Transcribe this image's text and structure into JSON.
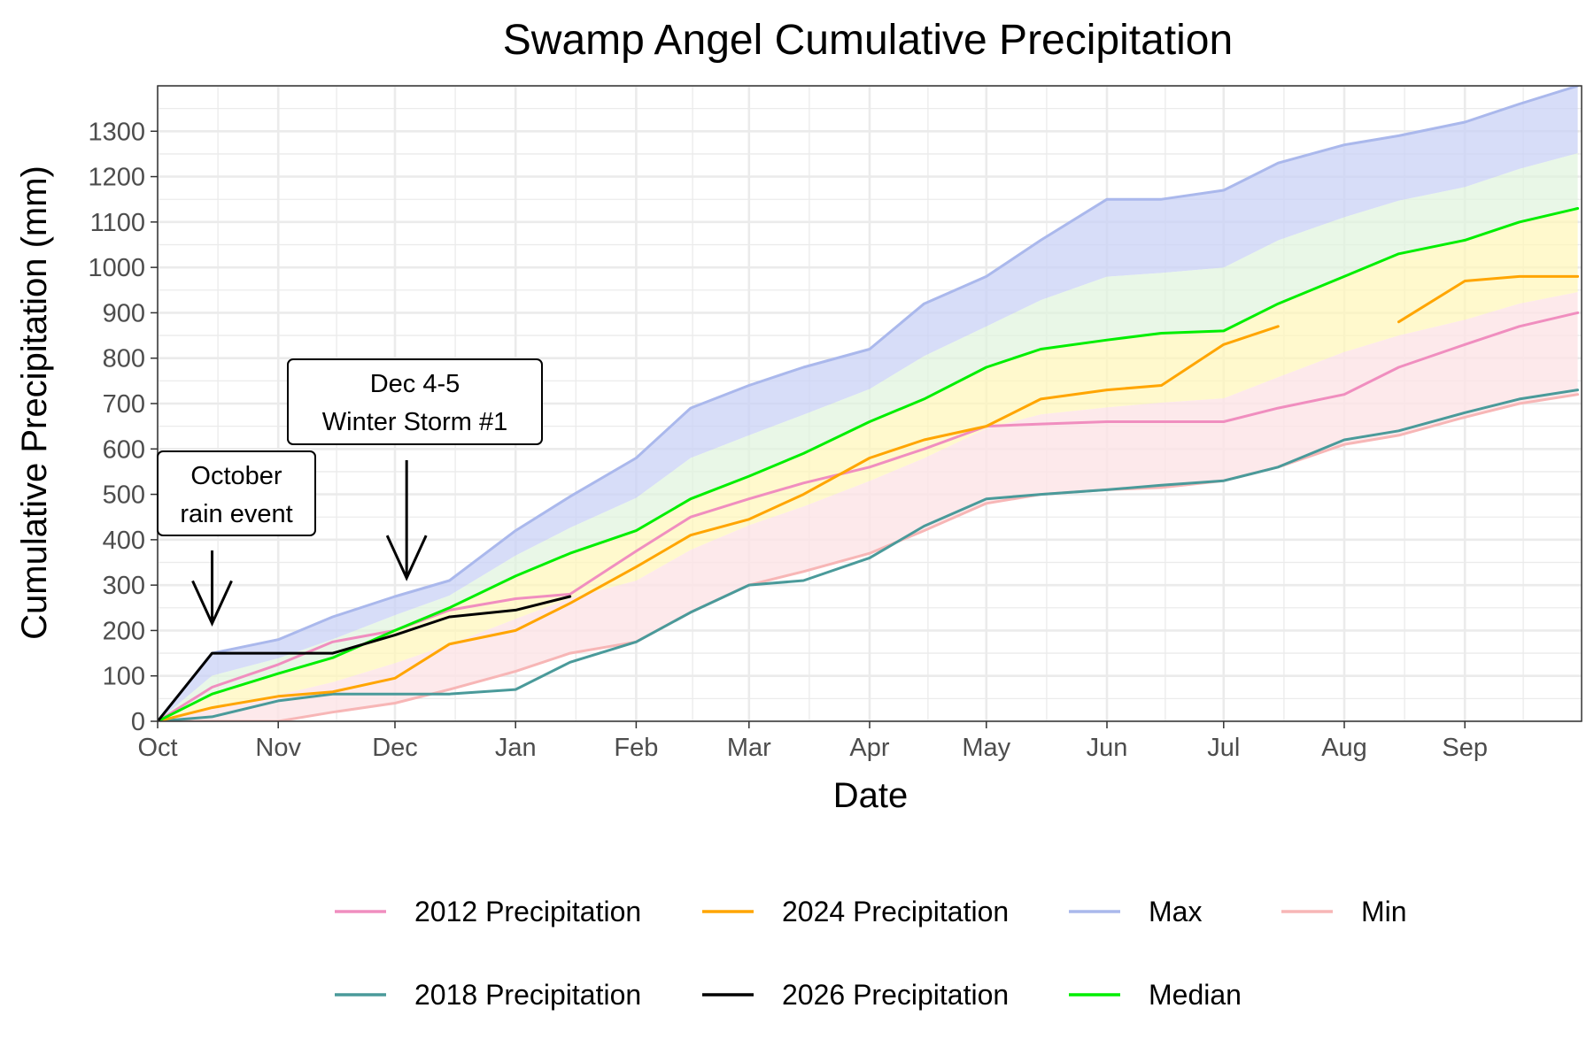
{
  "chart_data": {
    "type": "line",
    "title": "Swamp Angel Cumulative Precipitation",
    "xlabel": "Date",
    "ylabel": "Cumulative Precipitation (mm)",
    "x_unit": "month",
    "x_tick_labels": [
      "Oct",
      "Nov",
      "Dec",
      "Jan",
      "Feb",
      "Mar",
      "Apr",
      "May",
      "Jun",
      "Jul",
      "Aug",
      "Sep"
    ],
    "xlim": [
      "Oct 1",
      "Sep 30"
    ],
    "ylim": [
      0,
      1400
    ],
    "y_ticks": [
      0,
      100,
      200,
      300,
      400,
      500,
      600,
      700,
      800,
      900,
      1000,
      1100,
      1200,
      1300
    ],
    "grid": true,
    "legend_position": "bottom",
    "x": [
      "Oct 1",
      "Oct 15",
      "Nov 1",
      "Nov 15",
      "Dec 1",
      "Dec 15",
      "Jan 1",
      "Jan 15",
      "Feb 1",
      "Feb 15",
      "Mar 1",
      "Mar 15",
      "Apr 1",
      "Apr 15",
      "May 1",
      "May 15",
      "Jun 1",
      "Jun 15",
      "Jul 1",
      "Jul 15",
      "Aug 1",
      "Aug 15",
      "Sep 1",
      "Sep 15",
      "Sep 30"
    ],
    "series": [
      {
        "name": "2012 Precipitation",
        "color": "#f08ebf",
        "values": [
          0,
          75,
          125,
          175,
          200,
          245,
          270,
          280,
          375,
          450,
          490,
          525,
          560,
          600,
          650,
          655,
          660,
          660,
          660,
          690,
          720,
          780,
          830,
          870,
          900
        ]
      },
      {
        "name": "2018 Precipitation",
        "color": "#4a9a9a",
        "values": [
          0,
          10,
          45,
          60,
          60,
          60,
          70,
          130,
          175,
          240,
          300,
          310,
          360,
          430,
          490,
          500,
          510,
          520,
          530,
          560,
          620,
          640,
          680,
          710,
          730
        ]
      },
      {
        "name": "2024 Precipitation",
        "color": "#ffa500",
        "values": [
          0,
          30,
          55,
          65,
          95,
          170,
          200,
          260,
          340,
          410,
          445,
          500,
          580,
          620,
          650,
          710,
          730,
          740,
          830,
          870,
          null,
          880,
          970,
          980,
          980
        ]
      },
      {
        "name": "2026 Precipitation",
        "color": "#000000",
        "values": [
          0,
          150,
          150,
          150,
          190,
          230,
          245,
          275,
          null,
          null,
          null,
          null,
          null,
          null,
          null,
          null,
          null,
          null,
          null,
          null,
          null,
          null,
          null,
          null,
          null
        ]
      },
      {
        "name": "Max",
        "color": "#aab8ec",
        "values": [
          0,
          150,
          180,
          230,
          275,
          310,
          420,
          495,
          580,
          690,
          740,
          780,
          820,
          920,
          980,
          1060,
          1150,
          1150,
          1170,
          1230,
          1270,
          1290,
          1320,
          1360,
          1400
        ]
      },
      {
        "name": "Min",
        "color": "#f7b6b6",
        "values": [
          0,
          0,
          0,
          20,
          40,
          70,
          110,
          150,
          175,
          240,
          300,
          330,
          370,
          420,
          480,
          500,
          510,
          515,
          530,
          560,
          610,
          630,
          670,
          700,
          720
        ]
      },
      {
        "name": "Median",
        "color": "#00ee00",
        "values": [
          0,
          60,
          105,
          140,
          200,
          250,
          320,
          370,
          420,
          490,
          540,
          590,
          660,
          710,
          780,
          820,
          840,
          855,
          860,
          920,
          980,
          1030,
          1060,
          1100,
          1130
        ]
      }
    ],
    "annotations": [
      {
        "lines": [
          "October",
          "rain event"
        ],
        "date": "Oct 15",
        "value": 200
      },
      {
        "lines": [
          "Dec 4-5",
          "Winter Storm #1"
        ],
        "date": "Dec 4",
        "value": 300
      }
    ]
  }
}
